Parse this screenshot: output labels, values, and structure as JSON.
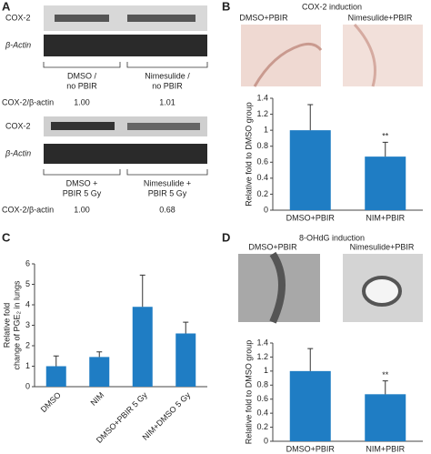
{
  "panel_a": {
    "label": "A",
    "blot1": {
      "rows": [
        "COX-2",
        "β-Actin"
      ],
      "groups": [
        [
          "DMSO /",
          "no PBIR"
        ],
        [
          "Nimesulide /",
          "no PBIR"
        ]
      ],
      "ratio_label": "COX-2/β-actin",
      "ratios": [
        "1.00",
        "1.01"
      ]
    },
    "blot2": {
      "rows": [
        "COX-2",
        "β-Actin"
      ],
      "groups": [
        [
          "DMSO +",
          "PBIR 5 Gy"
        ],
        [
          "Nimesulide +",
          "PBIR 5 Gy"
        ]
      ],
      "ratio_label": "COX-2/β-actin",
      "ratios": [
        "1.00",
        "0.68"
      ]
    }
  },
  "panel_b": {
    "label": "B",
    "images": [
      "DMSO+PBIR",
      "Nimesulide+PBIR"
    ]
  },
  "panel_c": {
    "label": "C"
  },
  "panel_d": {
    "label": "D",
    "images": [
      "DMSO+PBIR",
      "Nimesulide+PBIR"
    ]
  },
  "chart_data": [
    {
      "type": "bar",
      "title": "COX-2 induction",
      "y_label": [
        "Relative fold to DMSO group"
      ],
      "categories": [
        "DMSO+PBIR",
        "NIM+PBIR"
      ],
      "values": [
        1,
        0.67
      ],
      "errors": [
        0.32,
        0.18
      ],
      "ylim": [
        0,
        1.4
      ],
      "yticks": [
        0,
        0.2,
        0.4,
        0.6,
        0.8,
        1,
        1.2,
        1.4
      ],
      "color": "#1f7dc4",
      "annotation": "**"
    },
    {
      "type": "bar",
      "y_label": [
        "Relative fold",
        "change of PGE₂ in lungs"
      ],
      "categories": [
        "DMSO",
        "NIM",
        "DMSO+PBIR 5 Gy",
        "NIM+DMSO 5 Gy"
      ],
      "values": [
        1,
        1.45,
        3.9,
        2.6
      ],
      "errors": [
        0.5,
        0.25,
        1.55,
        0.55
      ],
      "ylim": [
        0,
        6
      ],
      "yticks": [
        0,
        1,
        2,
        3,
        4,
        5,
        6
      ],
      "color": "#1f7dc4"
    },
    {
      "type": "bar",
      "title": "8-OHdG induction",
      "y_label": [
        "Relative fold to DMSO group"
      ],
      "categories": [
        "DMSO+PBIR",
        "NIM+PBIR"
      ],
      "values": [
        1,
        0.67
      ],
      "errors": [
        0.32,
        0.19
      ],
      "ylim": [
        0,
        1.4
      ],
      "yticks": [
        0,
        0.2,
        0.4,
        0.6,
        0.8,
        1,
        1.2,
        1.4
      ],
      "color": "#1f7dc4",
      "annotation": "**"
    }
  ]
}
